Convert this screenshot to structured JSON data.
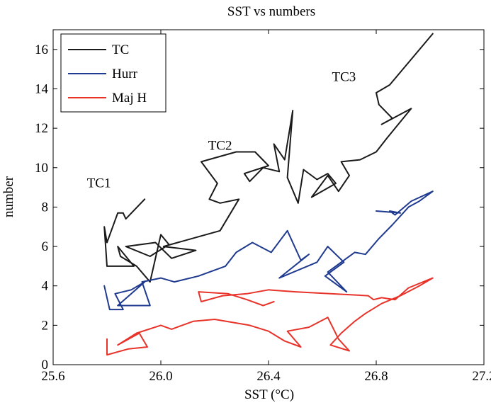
{
  "chart_data": {
    "type": "line",
    "title": "SST vs numbers",
    "xlabel": "SST (°C)",
    "ylabel": "number",
    "xlim": [
      25.6,
      27.2
    ],
    "ylim": [
      0,
      17
    ],
    "xticks": [
      25.6,
      26.0,
      26.4,
      26.8,
      27.2
    ],
    "xtick_labels": [
      "25.6",
      "26.0",
      "26.4",
      "26.8",
      "27.2"
    ],
    "yticks": [
      0,
      2,
      4,
      6,
      8,
      10,
      12,
      14,
      16
    ],
    "ytick_labels": [
      "0",
      "2",
      "4",
      "6",
      "8",
      "10",
      "12",
      "14",
      "16"
    ],
    "grid": false,
    "legend_position": "top-left",
    "annotations": [
      {
        "text": "TC1",
        "x": 25.77,
        "y": 9.0
      },
      {
        "text": "TC2",
        "x": 26.22,
        "y": 10.9
      },
      {
        "text": "TC3",
        "x": 26.68,
        "y": 14.4
      }
    ],
    "series": [
      {
        "name": "TC",
        "color": "#1a1a1a",
        "points": [
          [
            25.94,
            8.4
          ],
          [
            25.87,
            7.4
          ],
          [
            25.86,
            7.7
          ],
          [
            25.84,
            7.7
          ],
          [
            25.8,
            6.2
          ],
          [
            25.79,
            7.0
          ],
          [
            25.8,
            5.0
          ],
          [
            25.9,
            5.0
          ],
          [
            25.84,
            6.0
          ],
          [
            25.85,
            5.5
          ],
          [
            25.91,
            5.0
          ],
          [
            25.96,
            4.2
          ],
          [
            26.0,
            6.6
          ],
          [
            26.03,
            6.1
          ],
          [
            25.96,
            5.5
          ],
          [
            25.87,
            6.0
          ],
          [
            25.98,
            6.2
          ],
          [
            26.04,
            5.4
          ],
          [
            26.13,
            5.8
          ],
          [
            26.01,
            6.0
          ],
          [
            26.22,
            6.8
          ],
          [
            26.29,
            8.4
          ],
          [
            26.22,
            8.2
          ],
          [
            26.18,
            8.4
          ],
          [
            26.21,
            9.2
          ],
          [
            26.15,
            10.3
          ],
          [
            26.28,
            10.8
          ],
          [
            26.35,
            10.8
          ],
          [
            26.4,
            10.1
          ],
          [
            26.31,
            9.7
          ],
          [
            26.33,
            9.3
          ],
          [
            26.38,
            10.0
          ],
          [
            26.44,
            9.8
          ],
          [
            26.42,
            11.2
          ],
          [
            26.46,
            10.4
          ],
          [
            26.49,
            12.9
          ],
          [
            26.47,
            9.5
          ],
          [
            26.51,
            8.2
          ],
          [
            26.53,
            9.9
          ],
          [
            26.58,
            9.4
          ],
          [
            26.62,
            9.7
          ],
          [
            26.65,
            9.2
          ],
          [
            26.56,
            8.5
          ],
          [
            26.62,
            9.6
          ],
          [
            26.66,
            8.8
          ],
          [
            26.7,
            9.6
          ],
          [
            26.67,
            10.3
          ],
          [
            26.74,
            10.4
          ],
          [
            26.8,
            10.8
          ],
          [
            26.84,
            11.5
          ],
          [
            26.93,
            13.0
          ],
          [
            26.82,
            12.2
          ],
          [
            26.86,
            12.5
          ],
          [
            26.81,
            13.2
          ],
          [
            26.8,
            13.8
          ],
          [
            26.85,
            14.2
          ],
          [
            27.01,
            16.8
          ]
        ]
      },
      {
        "name": "Hurr",
        "color": "#1f3a8f",
        "points": [
          [
            25.79,
            4.0
          ],
          [
            25.81,
            2.8
          ],
          [
            25.86,
            2.8
          ],
          [
            25.83,
            3.6
          ],
          [
            25.89,
            3.8
          ],
          [
            25.94,
            4.2
          ],
          [
            25.84,
            3.0
          ],
          [
            25.96,
            3.0
          ],
          [
            25.93,
            4.2
          ],
          [
            26.0,
            4.4
          ],
          [
            26.05,
            4.2
          ],
          [
            26.14,
            4.5
          ],
          [
            26.24,
            5.0
          ],
          [
            26.28,
            5.7
          ],
          [
            26.34,
            6.2
          ],
          [
            26.41,
            5.7
          ],
          [
            26.47,
            6.8
          ],
          [
            26.52,
            5.3
          ],
          [
            26.55,
            5.6
          ],
          [
            26.44,
            4.4
          ],
          [
            26.58,
            5.2
          ],
          [
            26.62,
            6.0
          ],
          [
            26.68,
            5.2
          ],
          [
            26.61,
            4.5
          ],
          [
            26.69,
            3.7
          ],
          [
            26.62,
            4.7
          ],
          [
            26.72,
            5.7
          ],
          [
            26.76,
            5.6
          ],
          [
            26.81,
            6.4
          ],
          [
            26.86,
            7.1
          ],
          [
            26.92,
            8.0
          ],
          [
            26.96,
            8.3
          ],
          [
            27.01,
            8.8
          ],
          [
            26.93,
            8.3
          ],
          [
            26.87,
            7.6
          ],
          [
            26.85,
            7.8
          ],
          [
            26.89,
            7.7
          ],
          [
            26.8,
            7.8
          ]
        ]
      },
      {
        "name": "Maj H",
        "color": "#e8332a",
        "points": [
          [
            25.8,
            1.3
          ],
          [
            25.8,
            0.5
          ],
          [
            25.88,
            0.8
          ],
          [
            25.95,
            0.9
          ],
          [
            25.92,
            1.6
          ],
          [
            25.84,
            1.0
          ],
          [
            25.91,
            1.6
          ],
          [
            26.0,
            2.0
          ],
          [
            26.04,
            1.8
          ],
          [
            26.12,
            2.2
          ],
          [
            26.2,
            2.3
          ],
          [
            26.33,
            2.0
          ],
          [
            26.4,
            1.7
          ],
          [
            26.46,
            1.2
          ],
          [
            26.52,
            0.9
          ],
          [
            26.47,
            1.7
          ],
          [
            26.55,
            1.9
          ],
          [
            26.62,
            2.4
          ],
          [
            26.66,
            1.3
          ],
          [
            26.7,
            0.7
          ],
          [
            26.63,
            1.0
          ],
          [
            26.67,
            1.6
          ],
          [
            26.72,
            2.2
          ],
          [
            26.76,
            2.6
          ],
          [
            26.82,
            3.1
          ],
          [
            26.89,
            3.5
          ],
          [
            26.96,
            4.0
          ],
          [
            27.01,
            4.4
          ],
          [
            26.92,
            3.9
          ],
          [
            26.87,
            3.3
          ],
          [
            26.82,
            3.4
          ],
          [
            26.79,
            3.3
          ],
          [
            26.77,
            3.5
          ],
          [
            26.63,
            3.6
          ],
          [
            26.5,
            3.7
          ],
          [
            26.4,
            3.8
          ],
          [
            26.32,
            3.6
          ],
          [
            26.23,
            3.5
          ],
          [
            26.15,
            3.2
          ],
          [
            26.14,
            3.7
          ],
          [
            26.25,
            3.6
          ],
          [
            26.32,
            3.3
          ],
          [
            26.38,
            3.0
          ],
          [
            26.42,
            3.2
          ]
        ]
      }
    ]
  }
}
